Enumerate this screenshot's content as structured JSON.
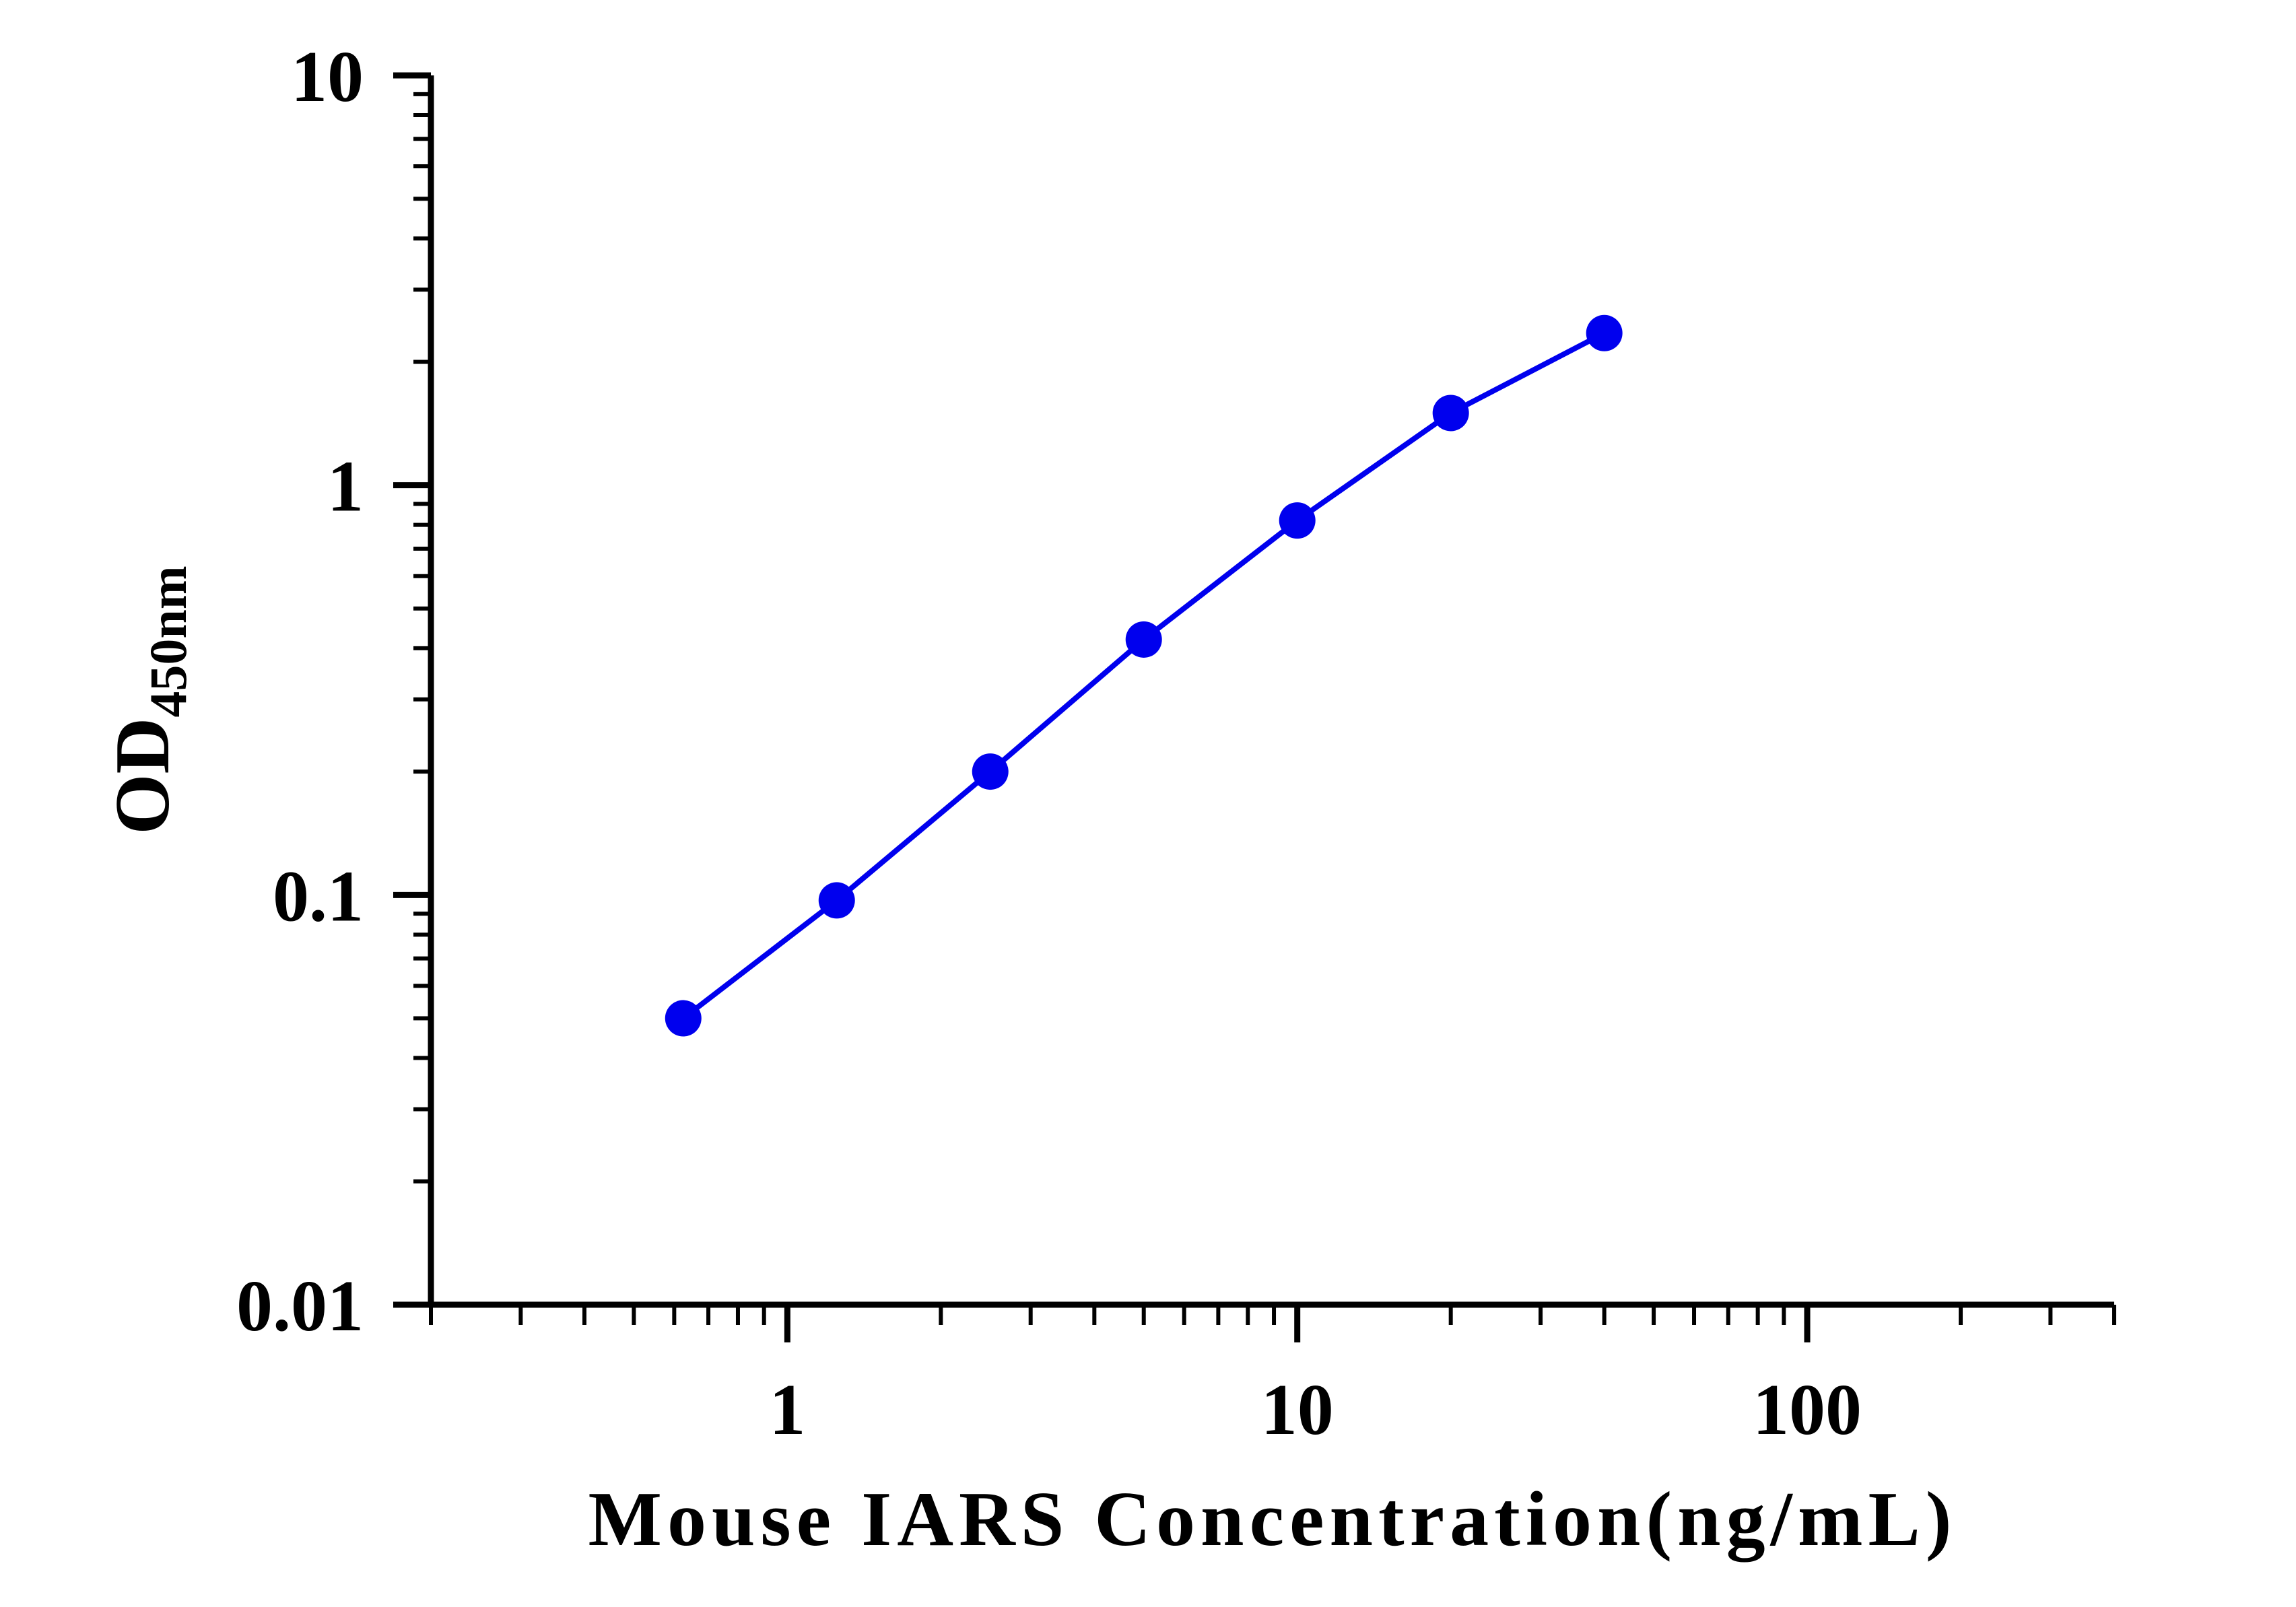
{
  "chart_data": {
    "type": "line",
    "title": "",
    "xlabel": "Mouse IARS Concentration(ng/mL)",
    "ylabel": {
      "main": "OD",
      "subscript": "450nm"
    },
    "xscale": "log",
    "yscale": "log",
    "xlim": [
      0.2,
      400
    ],
    "ylim": [
      0.01,
      10
    ],
    "x_tick_labels": [
      {
        "value": 1,
        "label": "1"
      },
      {
        "value": 10,
        "label": "10"
      },
      {
        "value": 100,
        "label": "100"
      }
    ],
    "y_tick_labels": [
      {
        "value": 0.01,
        "label": "0.01"
      },
      {
        "value": 0.1,
        "label": "0.1"
      },
      {
        "value": 1,
        "label": "1"
      },
      {
        "value": 10,
        "label": "10"
      }
    ],
    "grid": false,
    "legend": "none",
    "series": [
      {
        "color": "#0000ee",
        "marker": "circle",
        "x": [
          0.625,
          1.25,
          2.5,
          5,
          10,
          20,
          40
        ],
        "y": [
          0.05,
          0.097,
          0.2,
          0.42,
          0.82,
          1.5,
          2.35
        ]
      }
    ]
  }
}
